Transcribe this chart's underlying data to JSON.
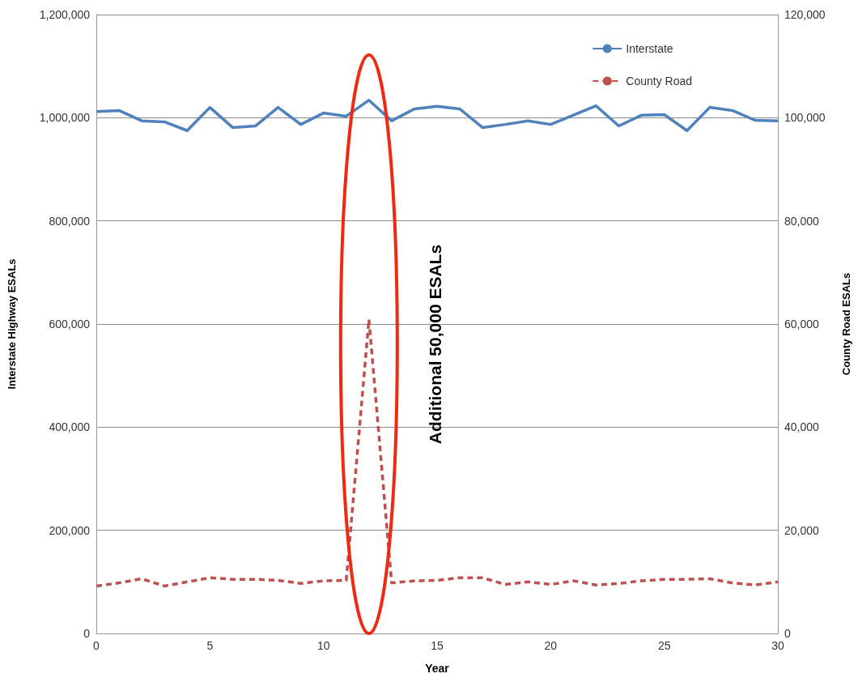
{
  "chart_data": {
    "type": "line",
    "xlabel": "Year",
    "ylabel": "Interstate Highway ESALs",
    "y2label": "County Road ESALs",
    "x": [
      0,
      1,
      2,
      3,
      4,
      5,
      6,
      7,
      8,
      9,
      10,
      11,
      12,
      13,
      14,
      15,
      16,
      17,
      18,
      19,
      20,
      21,
      22,
      23,
      24,
      25,
      26,
      27,
      28,
      29,
      30
    ],
    "series": [
      {
        "name": "Interstate",
        "color": "#4f81bd",
        "line_style": "solid",
        "values": [
          1012000,
          1014000,
          994000,
          992000,
          975000,
          1020000,
          981000,
          984000,
          1020000,
          987000,
          1009000,
          1003000,
          1034000,
          994000,
          1017000,
          1022000,
          1017000,
          981000,
          987000,
          994000,
          987000,
          1005000,
          1023000,
          984000,
          1005000,
          1006000,
          975000,
          1020000,
          1014000,
          995000,
          994000
        ]
      },
      {
        "name": "County Road",
        "color": "#c0504d",
        "line_style": "dashed",
        "axis": "y2",
        "values": [
          9200,
          9800,
          10600,
          9200,
          10000,
          10800,
          10500,
          10500,
          10300,
          9700,
          10200,
          10300,
          60900,
          9800,
          10200,
          10300,
          10800,
          10800,
          9500,
          10000,
          9500,
          10200,
          9400,
          9700,
          10200,
          10500,
          10500,
          10600,
          9800,
          9400,
          10000
        ]
      }
    ],
    "xlim": [
      0,
      30
    ],
    "xticks": [
      0,
      5,
      10,
      15,
      20,
      25,
      30
    ],
    "ylim": [
      0,
      1200000
    ],
    "yticks": [
      0,
      {
        "value": 200000,
        "label": "200,000"
      },
      {
        "value": 400000,
        "label": "400,000"
      },
      {
        "value": 600000,
        "label": "600,000"
      },
      {
        "value": 800000,
        "label": "800,000"
      },
      {
        "value": 1000000,
        "label": "1,000,000"
      },
      {
        "value": 1200000,
        "label": "1,200,000"
      }
    ],
    "y2lim": [
      0,
      120000
    ],
    "y2ticks": [
      0,
      {
        "value": 20000,
        "label": "20,000"
      },
      {
        "value": 40000,
        "label": "40,000"
      },
      {
        "value": 60000,
        "label": "60,000"
      },
      {
        "value": 80000,
        "label": "80,000"
      },
      {
        "value": 100000,
        "label": "100,000"
      },
      {
        "value": 120000,
        "label": "120,000"
      }
    ],
    "annotations": [
      "Additional 50,000 ESALs"
    ],
    "grid": "y",
    "legend": "top right",
    "marker": "none"
  }
}
